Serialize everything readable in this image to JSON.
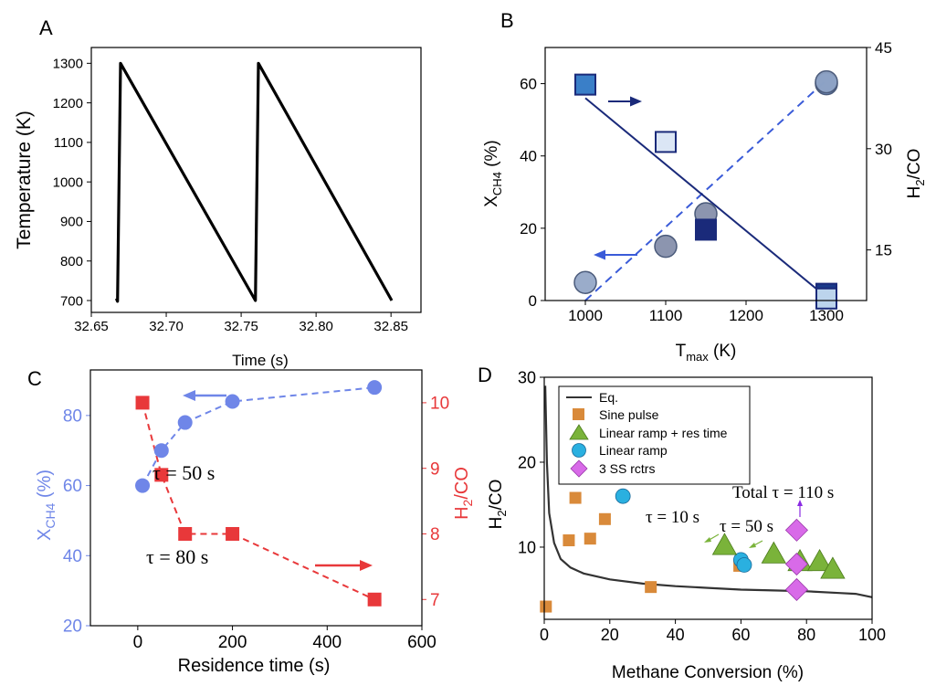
{
  "colors": {
    "black": "#000000",
    "navy": "#1a2a7a",
    "dashblue": "#3a5bd8",
    "cx_blue": "#6f86e8",
    "red": "#e8383a",
    "sine": "#d98a3a",
    "green": "#7ab33a",
    "cyan": "#2ab0e0",
    "violet": "#d86ae8",
    "eqline": "#333333"
  },
  "chart_data": [
    {
      "panel": "A",
      "type": "line",
      "xlabel": "Time (s)",
      "ylabel": "Temperature (K)",
      "xlim": [
        32.65,
        32.87
      ],
      "ylim": [
        670,
        1340
      ],
      "xticks": [
        "32.65",
        "32.70",
        "32.75",
        "32.80",
        "32.85"
      ],
      "xtick_values": [
        32.65,
        32.7,
        32.75,
        32.8,
        32.85
      ],
      "yticks": [
        "700",
        "800",
        "900",
        "1000",
        "1100",
        "1200",
        "1300"
      ],
      "ytick_values": [
        700,
        800,
        900,
        1000,
        1100,
        1200,
        1300
      ],
      "series": [
        {
          "name": "Temperature",
          "x": [
            32.6667,
            32.6675,
            32.6695,
            32.7595,
            32.7615,
            32.8505
          ],
          "y": [
            705,
            698,
            1300,
            700,
            1300,
            700
          ]
        }
      ]
    },
    {
      "panel": "B",
      "type": "scatter",
      "xlabel_main": "T",
      "xlabel_sub": "max",
      "xlabel_unit": " (K)",
      "ylabel_main": "X",
      "ylabel_sub": "CH4",
      "ylabel_unit": " (%)",
      "y2label_main": "H",
      "y2label_sub": "2",
      "y2label_unit": "/CO",
      "xlim": [
        950,
        1350
      ],
      "ylim": [
        0,
        70
      ],
      "y2lim": [
        7.5,
        45
      ],
      "xticks": [
        "1000",
        "1100",
        "1200",
        "1300"
      ],
      "xtick_values": [
        1000,
        1100,
        1200,
        1300
      ],
      "yticks": [
        "0",
        "20",
        "40",
        "60"
      ],
      "ytick_values": [
        0,
        20,
        40,
        60
      ],
      "y2ticks": [
        "15",
        "30",
        "45"
      ],
      "y2tick_values": [
        15,
        30,
        45
      ],
      "conversion_points": {
        "x": [
          1000,
          1100,
          1150,
          1300,
          1300
        ],
        "y": [
          5,
          15,
          24,
          60,
          60.5
        ]
      },
      "ratio_points": {
        "x": [
          1000,
          1100,
          1150,
          1300,
          1300
        ],
        "y2": [
          39.5,
          31,
          18,
          8.5,
          7.8
        ]
      },
      "conversion_fit": {
        "x": [
          1000,
          1300
        ],
        "y": [
          0,
          61
        ]
      },
      "ratio_fit": {
        "x": [
          1000,
          1300
        ],
        "y2": [
          37.5,
          8
        ]
      }
    },
    {
      "panel": "C",
      "type": "scatter",
      "xlabel": "Residence time (s)",
      "ylabel_main": "X",
      "ylabel_sub": "CH4",
      "ylabel_unit": " (%)",
      "y2label": "H2/CO",
      "xlim": [
        -100,
        600
      ],
      "ylim": [
        20,
        93
      ],
      "y2lim": [
        6.6,
        10.5
      ],
      "xticks": [
        "0",
        "200",
        "400",
        "600"
      ],
      "xtick_values": [
        0,
        200,
        400,
        600
      ],
      "yticks": [
        "20",
        "40",
        "60",
        "80"
      ],
      "ytick_values": [
        20,
        40,
        60,
        80
      ],
      "y2ticks": [
        "7",
        "8",
        "9",
        "10"
      ],
      "y2tick_values": [
        7,
        8,
        9,
        10
      ],
      "series": [
        {
          "name": "X_CH4",
          "axis": "left",
          "x": [
            10,
            50,
            100,
            200,
            500
          ],
          "y": [
            60,
            70,
            78,
            84,
            88
          ]
        },
        {
          "name": "H2/CO",
          "axis": "right",
          "x": [
            10,
            50,
            100,
            200,
            500
          ],
          "y": [
            10,
            8.9,
            8,
            8,
            7
          ]
        }
      ],
      "annotations": [
        "τ = 50 s",
        "τ = 80 s"
      ]
    },
    {
      "panel": "D",
      "type": "scatter",
      "xlabel": "Methane Conversion (%)",
      "ylabel": "H2/CO",
      "xlim": [
        0,
        100
      ],
      "ylim": [
        1.5,
        30
      ],
      "xticks": [
        "0",
        "20",
        "40",
        "60",
        "80",
        "100"
      ],
      "xtick_values": [
        0,
        20,
        40,
        60,
        80,
        100
      ],
      "yticks": [
        "10",
        "20",
        "30"
      ],
      "ytick_values": [
        10,
        20,
        30
      ],
      "legend": [
        "Eq.",
        "Sine pulse",
        "Linear ramp + res time",
        "Linear ramp",
        "3 SS rctrs"
      ],
      "equilibrium": {
        "x": [
          0.3,
          0.8,
          1.5,
          3,
          5,
          8,
          12,
          20,
          30,
          40,
          50,
          60,
          70,
          80,
          90,
          95,
          100
        ],
        "y": [
          29,
          20,
          14,
          10.5,
          8.6,
          7.6,
          6.9,
          6.2,
          5.7,
          5.4,
          5.2,
          5.0,
          4.9,
          4.8,
          4.6,
          4.5,
          4.1
        ]
      },
      "series": [
        {
          "name": "Sine pulse",
          "x": [
            0.5,
            7.5,
            9.5,
            14,
            18.5,
            32.5,
            59.5
          ],
          "y": [
            3,
            10.8,
            15.8,
            11,
            13.3,
            5.3,
            7.8
          ]
        },
        {
          "name": "Linear ramp + res time",
          "x": [
            55,
            70,
            78,
            84,
            88
          ],
          "y": [
            10.2,
            9.2,
            8.3,
            8.3,
            7.4
          ]
        },
        {
          "name": "Linear ramp",
          "x": [
            24,
            60,
            61
          ],
          "y": [
            16,
            8.5,
            7.9
          ]
        },
        {
          "name": "3 SS rctrs",
          "x": [
            77,
            77,
            77
          ],
          "y": [
            12,
            8,
            5
          ]
        }
      ],
      "annotations": [
        "Total τ = 110 s",
        "τ = 10 s",
        "τ = 50 s"
      ]
    }
  ],
  "panel_labels": {
    "A": "A",
    "B": "B",
    "C": "C",
    "D": "D"
  }
}
